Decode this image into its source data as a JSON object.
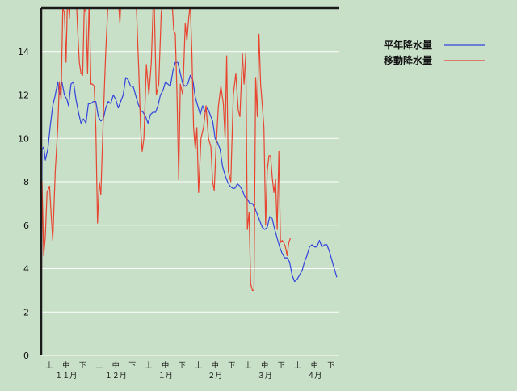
{
  "chart_data": {
    "type": "line",
    "title": "",
    "xlabel": "",
    "ylabel": "",
    "ylim": [
      0,
      16
    ],
    "yticks": [
      0,
      2,
      4,
      6,
      8,
      10,
      12,
      14
    ],
    "grid": true,
    "legend_position": "top-right",
    "x_range": [
      0,
      18
    ],
    "x_ticks": [
      {
        "x": 0.5,
        "label": "上"
      },
      {
        "x": 1.5,
        "label": "中"
      },
      {
        "x": 2.5,
        "label": "下"
      },
      {
        "x": 3.5,
        "label": "上"
      },
      {
        "x": 4.5,
        "label": "中"
      },
      {
        "x": 5.5,
        "label": "下"
      },
      {
        "x": 6.5,
        "label": "上"
      },
      {
        "x": 7.5,
        "label": "中"
      },
      {
        "x": 8.5,
        "label": "下"
      },
      {
        "x": 9.5,
        "label": "上"
      },
      {
        "x": 10.5,
        "label": "中"
      },
      {
        "x": 11.5,
        "label": "下"
      },
      {
        "x": 12.5,
        "label": "上"
      },
      {
        "x": 13.5,
        "label": "中"
      },
      {
        "x": 14.5,
        "label": "下"
      },
      {
        "x": 15.5,
        "label": "上"
      },
      {
        "x": 16.5,
        "label": "中"
      },
      {
        "x": 17.5,
        "label": "下"
      }
    ],
    "month_labels": [
      {
        "x": 1.5,
        "label": "１１月"
      },
      {
        "x": 4.5,
        "label": "１２月"
      },
      {
        "x": 7.5,
        "label": "１月"
      },
      {
        "x": 10.5,
        "label": "２月"
      },
      {
        "x": 13.5,
        "label": "３月"
      },
      {
        "x": 16.5,
        "label": "４月"
      }
    ],
    "series": [
      {
        "name": "平年降水量",
        "color": "#3344dd",
        "points": [
          [
            0,
            0
          ],
          [
            0.05,
            9.5
          ],
          [
            0.15,
            9.6
          ],
          [
            0.25,
            9.0
          ],
          [
            0.4,
            9.5
          ],
          [
            0.55,
            10.6
          ],
          [
            0.7,
            11.5
          ],
          [
            0.85,
            12.0
          ],
          [
            1.0,
            12.6
          ],
          [
            1.1,
            12.0
          ],
          [
            1.25,
            12.6
          ],
          [
            1.4,
            12.0
          ],
          [
            1.55,
            11.8
          ],
          [
            1.65,
            11.5
          ],
          [
            1.8,
            12.5
          ],
          [
            1.95,
            12.6
          ],
          [
            2.1,
            11.8
          ],
          [
            2.25,
            11.2
          ],
          [
            2.4,
            10.7
          ],
          [
            2.55,
            10.9
          ],
          [
            2.7,
            10.7
          ],
          [
            2.85,
            11.6
          ],
          [
            3.0,
            11.6
          ],
          [
            3.15,
            11.7
          ],
          [
            3.3,
            11.7
          ],
          [
            3.45,
            11.0
          ],
          [
            3.6,
            10.8
          ],
          [
            3.75,
            10.9
          ],
          [
            3.9,
            11.4
          ],
          [
            4.05,
            11.7
          ],
          [
            4.2,
            11.6
          ],
          [
            4.35,
            12.0
          ],
          [
            4.5,
            11.8
          ],
          [
            4.65,
            11.4
          ],
          [
            4.8,
            11.7
          ],
          [
            4.95,
            12.0
          ],
          [
            5.1,
            12.8
          ],
          [
            5.25,
            12.7
          ],
          [
            5.4,
            12.4
          ],
          [
            5.55,
            12.4
          ],
          [
            5.7,
            12.0
          ],
          [
            5.85,
            11.6
          ],
          [
            6.0,
            11.3
          ],
          [
            6.15,
            11.2
          ],
          [
            6.3,
            11.0
          ],
          [
            6.45,
            10.7
          ],
          [
            6.6,
            11.1
          ],
          [
            6.75,
            11.2
          ],
          [
            6.9,
            11.2
          ],
          [
            7.05,
            11.5
          ],
          [
            7.2,
            12.0
          ],
          [
            7.35,
            12.2
          ],
          [
            7.5,
            12.6
          ],
          [
            7.65,
            12.5
          ],
          [
            7.8,
            12.4
          ],
          [
            7.95,
            13.1
          ],
          [
            8.1,
            13.5
          ],
          [
            8.25,
            13.5
          ],
          [
            8.4,
            13.0
          ],
          [
            8.55,
            12.5
          ],
          [
            8.7,
            12.4
          ],
          [
            8.85,
            12.5
          ],
          [
            9.0,
            12.9
          ],
          [
            9.15,
            12.7
          ],
          [
            9.3,
            11.9
          ],
          [
            9.45,
            11.5
          ],
          [
            9.6,
            11.1
          ],
          [
            9.75,
            11.5
          ],
          [
            9.9,
            11.2
          ],
          [
            10.05,
            11.4
          ],
          [
            10.2,
            11.1
          ],
          [
            10.35,
            10.8
          ],
          [
            10.5,
            10.0
          ],
          [
            10.65,
            9.8
          ],
          [
            10.8,
            9.5
          ],
          [
            10.95,
            8.7
          ],
          [
            11.1,
            8.3
          ],
          [
            11.25,
            8.0
          ],
          [
            11.4,
            7.8
          ],
          [
            11.55,
            7.7
          ],
          [
            11.7,
            7.7
          ],
          [
            11.85,
            7.9
          ],
          [
            12.0,
            7.8
          ],
          [
            12.15,
            7.6
          ],
          [
            12.3,
            7.3
          ],
          [
            12.45,
            7.2
          ],
          [
            12.6,
            7.0
          ],
          [
            12.75,
            7.0
          ],
          [
            12.9,
            6.8
          ],
          [
            13.05,
            6.5
          ],
          [
            13.2,
            6.2
          ],
          [
            13.35,
            5.9
          ],
          [
            13.5,
            5.8
          ],
          [
            13.65,
            5.9
          ],
          [
            13.8,
            6.4
          ],
          [
            13.95,
            6.3
          ],
          [
            14.1,
            5.8
          ],
          [
            14.25,
            5.4
          ],
          [
            14.4,
            5.0
          ],
          [
            14.55,
            4.7
          ],
          [
            14.7,
            4.5
          ],
          [
            14.85,
            4.5
          ],
          [
            15.0,
            4.3
          ],
          [
            15.15,
            3.7
          ],
          [
            15.3,
            3.4
          ],
          [
            15.45,
            3.5
          ],
          [
            15.6,
            3.7
          ],
          [
            15.75,
            3.9
          ],
          [
            15.9,
            4.3
          ],
          [
            16.05,
            4.6
          ],
          [
            16.2,
            5.0
          ],
          [
            16.35,
            5.1
          ],
          [
            16.5,
            5.0
          ],
          [
            16.65,
            5.0
          ],
          [
            16.8,
            5.3
          ],
          [
            16.95,
            5.0
          ],
          [
            17.1,
            5.1
          ],
          [
            17.25,
            5.1
          ],
          [
            17.4,
            4.8
          ],
          [
            17.55,
            4.4
          ],
          [
            17.7,
            4.0
          ],
          [
            17.85,
            3.6
          ]
        ]
      },
      {
        "name": "移動降水量",
        "color": "#e84430",
        "points": [
          [
            0,
            0
          ],
          [
            0.05,
            8.0
          ],
          [
            0.15,
            4.6
          ],
          [
            0.25,
            5.5
          ],
          [
            0.35,
            7.5
          ],
          [
            0.5,
            7.8
          ],
          [
            0.6,
            6.5
          ],
          [
            0.7,
            5.3
          ],
          [
            0.85,
            8.5
          ],
          [
            1.0,
            10.5
          ],
          [
            1.1,
            12.6
          ],
          [
            1.2,
            11.8
          ],
          [
            1.3,
            16.0
          ],
          [
            1.4,
            15.8
          ],
          [
            1.5,
            13.5
          ],
          [
            1.6,
            17.0
          ],
          [
            1.7,
            15.5
          ],
          [
            1.8,
            17.0
          ],
          [
            1.9,
            17.0
          ],
          [
            2.0,
            16.5
          ],
          [
            2.1,
            16.8
          ],
          [
            2.2,
            15.0
          ],
          [
            2.3,
            13.5
          ],
          [
            2.4,
            13.0
          ],
          [
            2.5,
            12.9
          ],
          [
            2.6,
            16.0
          ],
          [
            2.7,
            15.8
          ],
          [
            2.8,
            13.0
          ],
          [
            2.9,
            16.5
          ],
          [
            3.0,
            12.5
          ],
          [
            3.1,
            12.5
          ],
          [
            3.2,
            12.4
          ],
          [
            3.3,
            10.5
          ],
          [
            3.4,
            6.1
          ],
          [
            3.5,
            8.0
          ],
          [
            3.6,
            7.4
          ],
          [
            3.75,
            11.0
          ],
          [
            3.9,
            14.0
          ],
          [
            4.05,
            16.5
          ],
          [
            4.2,
            17.0
          ],
          [
            4.35,
            17.0
          ],
          [
            4.5,
            17.0
          ],
          [
            4.65,
            16.5
          ],
          [
            4.75,
            15.3
          ],
          [
            4.85,
            17.0
          ],
          [
            5.0,
            17.0
          ],
          [
            5.15,
            17.0
          ],
          [
            5.3,
            17.0
          ],
          [
            5.45,
            17.0
          ],
          [
            5.6,
            16.5
          ],
          [
            5.75,
            16.0
          ],
          [
            5.9,
            13.0
          ],
          [
            6.0,
            10.5
          ],
          [
            6.1,
            9.4
          ],
          [
            6.2,
            10.0
          ],
          [
            6.35,
            13.4
          ],
          [
            6.5,
            12.0
          ],
          [
            6.65,
            13.5
          ],
          [
            6.8,
            17.0
          ],
          [
            6.95,
            12.0
          ],
          [
            7.1,
            12.5
          ],
          [
            7.25,
            15.8
          ],
          [
            7.4,
            16.5
          ],
          [
            7.55,
            17.0
          ],
          [
            7.7,
            17.0
          ],
          [
            7.85,
            17.0
          ],
          [
            8.0,
            15.0
          ],
          [
            8.1,
            14.8
          ],
          [
            8.2,
            12.0
          ],
          [
            8.3,
            8.1
          ],
          [
            8.4,
            12.5
          ],
          [
            8.55,
            12.0
          ],
          [
            8.7,
            15.3
          ],
          [
            8.8,
            14.5
          ],
          [
            8.9,
            15.5
          ],
          [
            9.0,
            16.2
          ],
          [
            9.1,
            14.0
          ],
          [
            9.2,
            10.5
          ],
          [
            9.3,
            9.5
          ],
          [
            9.4,
            10.5
          ],
          [
            9.5,
            7.5
          ],
          [
            9.65,
            10.0
          ],
          [
            9.8,
            10.5
          ],
          [
            9.95,
            11.5
          ],
          [
            10.1,
            10.0
          ],
          [
            10.25,
            9.6
          ],
          [
            10.35,
            8.0
          ],
          [
            10.45,
            7.6
          ],
          [
            10.55,
            9.5
          ],
          [
            10.7,
            11.5
          ],
          [
            10.85,
            12.4
          ],
          [
            11.0,
            11.6
          ],
          [
            11.1,
            10.0
          ],
          [
            11.2,
            13.8
          ],
          [
            11.3,
            8.5
          ],
          [
            11.45,
            8.0
          ],
          [
            11.6,
            12.0
          ],
          [
            11.75,
            13.0
          ],
          [
            11.9,
            11.3
          ],
          [
            12.0,
            11.0
          ],
          [
            12.15,
            13.9
          ],
          [
            12.25,
            12.5
          ],
          [
            12.35,
            13.9
          ],
          [
            12.45,
            5.8
          ],
          [
            12.55,
            6.6
          ],
          [
            12.65,
            3.3
          ],
          [
            12.75,
            3.0
          ],
          [
            12.85,
            3.0
          ],
          [
            12.95,
            12.8
          ],
          [
            13.05,
            11.0
          ],
          [
            13.15,
            14.8
          ],
          [
            13.25,
            12.5
          ],
          [
            13.35,
            11.5
          ],
          [
            13.45,
            10.5
          ],
          [
            13.55,
            6.0
          ],
          [
            13.65,
            8.5
          ],
          [
            13.75,
            9.2
          ],
          [
            13.85,
            9.2
          ],
          [
            13.95,
            8.2
          ],
          [
            14.05,
            7.5
          ],
          [
            14.15,
            8.1
          ],
          [
            14.25,
            5.8
          ],
          [
            14.35,
            9.4
          ],
          [
            14.45,
            5.2
          ],
          [
            14.55,
            5.3
          ],
          [
            14.65,
            5.2
          ],
          [
            14.75,
            5.0
          ],
          [
            14.85,
            4.6
          ],
          [
            14.95,
            5.2
          ],
          [
            15.05,
            5.4
          ]
        ]
      }
    ]
  }
}
